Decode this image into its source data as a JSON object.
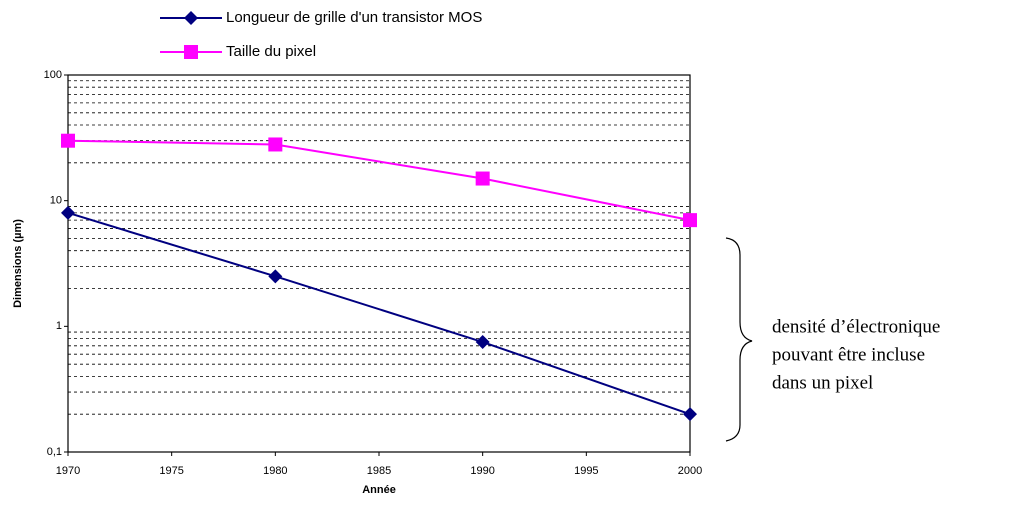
{
  "chart_data": {
    "type": "line",
    "x": [
      1970,
      1980,
      1990,
      2000
    ],
    "series": [
      {
        "name": "Longueur de grille d'un transistor MOS",
        "color": "#000080",
        "marker": "diamond",
        "values": [
          8,
          2.5,
          0.75,
          0.2
        ]
      },
      {
        "name": "Taille du pixel",
        "color": "#ff00ff",
        "marker": "square",
        "values": [
          30,
          28,
          15,
          7
        ]
      }
    ],
    "xlabel": "Année",
    "ylabel": "Dimensions (µm)",
    "xlim": [
      1970,
      2000
    ],
    "xticks": [
      1970,
      1975,
      1980,
      1985,
      1990,
      1995,
      2000
    ],
    "ylim": [
      0.1,
      100
    ],
    "yticks": [
      {
        "value": 0.1,
        "label": "0,1"
      },
      1,
      10,
      100
    ],
    "log_y": true,
    "grid": true,
    "annotation": [
      "densité d’électronique",
      "pouvant être incluse",
      "dans un pixel"
    ]
  }
}
